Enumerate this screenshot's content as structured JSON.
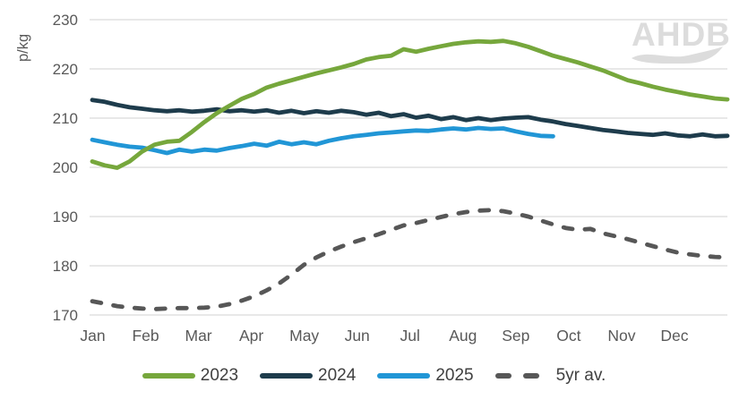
{
  "watermark": "AHDB",
  "colors": {
    "background": "#ffffff",
    "grid": "#d9d9d9",
    "axis_text": "#595959",
    "legend_text": "#404040",
    "watermark": "#dcdcdc",
    "series_2023": "#76A73C",
    "series_2024": "#1E3C4C",
    "series_2025": "#2196D6",
    "series_5yr": "#575757"
  },
  "chart_data": {
    "type": "line",
    "title": "",
    "ylabel": "p/kg",
    "xlabel": "",
    "ylim": [
      170,
      230
    ],
    "y_ticks": [
      170,
      180,
      190,
      200,
      210,
      220,
      230
    ],
    "x_tick_labels": [
      "Jan",
      "Feb",
      "Mar",
      "Apr",
      "May",
      "Jun",
      "Jul",
      "Aug",
      "Sep",
      "Oct",
      "Nov",
      "Dec"
    ],
    "x_unit": "week-of-year (weekly prices)",
    "grid": "horizontal",
    "legend_position": "bottom",
    "series": [
      {
        "name": "5yr av.",
        "color": "#575757",
        "style": "dashed",
        "weekly_values": [
          172.8,
          172.3,
          171.8,
          171.5,
          171.3,
          171.2,
          171.3,
          171.4,
          171.4,
          171.5,
          171.7,
          172.2,
          172.9,
          173.8,
          175.0,
          176.4,
          178.2,
          180.2,
          181.7,
          182.9,
          183.9,
          184.8,
          185.6,
          186.4,
          187.3,
          188.2,
          188.7,
          189.3,
          189.9,
          190.5,
          190.9,
          191.2,
          191.3,
          191.1,
          190.6,
          190.0,
          189.2,
          188.4,
          187.7,
          187.3,
          187.5,
          186.6,
          186.0,
          185.4,
          184.7,
          184.0,
          183.3,
          182.7,
          182.3,
          182.0,
          181.8,
          181.7
        ]
      },
      {
        "name": "2024",
        "color": "#1E3C4C",
        "style": "solid",
        "weekly_values": [
          213.7,
          213.3,
          212.7,
          212.2,
          211.9,
          211.6,
          211.4,
          211.6,
          211.3,
          211.5,
          211.8,
          211.4,
          211.6,
          211.3,
          211.6,
          211.1,
          211.5,
          211.0,
          211.4,
          211.1,
          211.5,
          211.2,
          210.7,
          211.1,
          210.4,
          210.8,
          210.1,
          210.5,
          209.8,
          210.2,
          209.6,
          210.0,
          209.6,
          209.9,
          210.1,
          210.2,
          209.7,
          209.3,
          208.8,
          208.4,
          208.0,
          207.6,
          207.3,
          207.0,
          206.8,
          206.6,
          206.9,
          206.5,
          206.3,
          206.7,
          206.3,
          206.4
        ]
      },
      {
        "name": "2025",
        "color": "#2196D6",
        "style": "solid",
        "weekly_values": [
          205.6,
          205.1,
          204.6,
          204.2,
          204.0,
          203.5,
          202.9,
          203.6,
          203.2,
          203.6,
          203.4,
          203.9,
          204.3,
          204.8,
          204.4,
          205.2,
          204.7,
          205.1,
          204.7,
          205.4,
          205.9,
          206.3,
          206.6,
          206.9,
          207.1,
          207.3,
          207.5,
          207.4,
          207.7,
          207.9,
          207.7,
          208.0,
          207.8,
          207.9,
          207.3,
          206.8,
          206.4,
          206.3
        ]
      },
      {
        "name": "2023",
        "color": "#76A73C",
        "style": "solid",
        "weekly_values": [
          201.2,
          200.4,
          199.9,
          201.2,
          203.2,
          204.6,
          205.2,
          205.4,
          207.2,
          209.2,
          211.0,
          212.5,
          213.9,
          214.9,
          216.2,
          217.0,
          217.7,
          218.4,
          219.1,
          219.7,
          220.3,
          221.0,
          221.9,
          222.4,
          222.7,
          224.0,
          223.5,
          224.1,
          224.6,
          225.1,
          225.4,
          225.6,
          225.5,
          225.7,
          225.2,
          224.5,
          223.6,
          222.7,
          222.0,
          221.3,
          220.5,
          219.7,
          218.7,
          217.7,
          217.1,
          216.4,
          215.8,
          215.3,
          214.8,
          214.4,
          214.0,
          213.8
        ]
      }
    ]
  }
}
